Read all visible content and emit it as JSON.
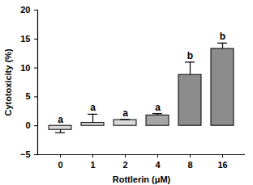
{
  "chart_data": {
    "type": "bar",
    "categories": [
      "0",
      "1",
      "2",
      "4",
      "8",
      "16"
    ],
    "values": [
      -0.7,
      0.5,
      1.0,
      1.8,
      8.8,
      13.3
    ],
    "errors": [
      0.5,
      1.5,
      0.1,
      0.3,
      2.2,
      1.0
    ],
    "annotations": [
      "a",
      "a",
      "a",
      "a",
      "b",
      "b"
    ],
    "colors": [
      "#d9d9d9",
      "#d9d9d9",
      "#d9d9d9",
      "#a6a6a6",
      "#8c8c8c",
      "#8c8c8c"
    ],
    "x_label": "Rottlerin (μM)",
    "y_label": "Cytotoxicity (%)",
    "ylim": [
      -5,
      20
    ],
    "yticks": [
      -5,
      0,
      5,
      10,
      15,
      20
    ]
  }
}
